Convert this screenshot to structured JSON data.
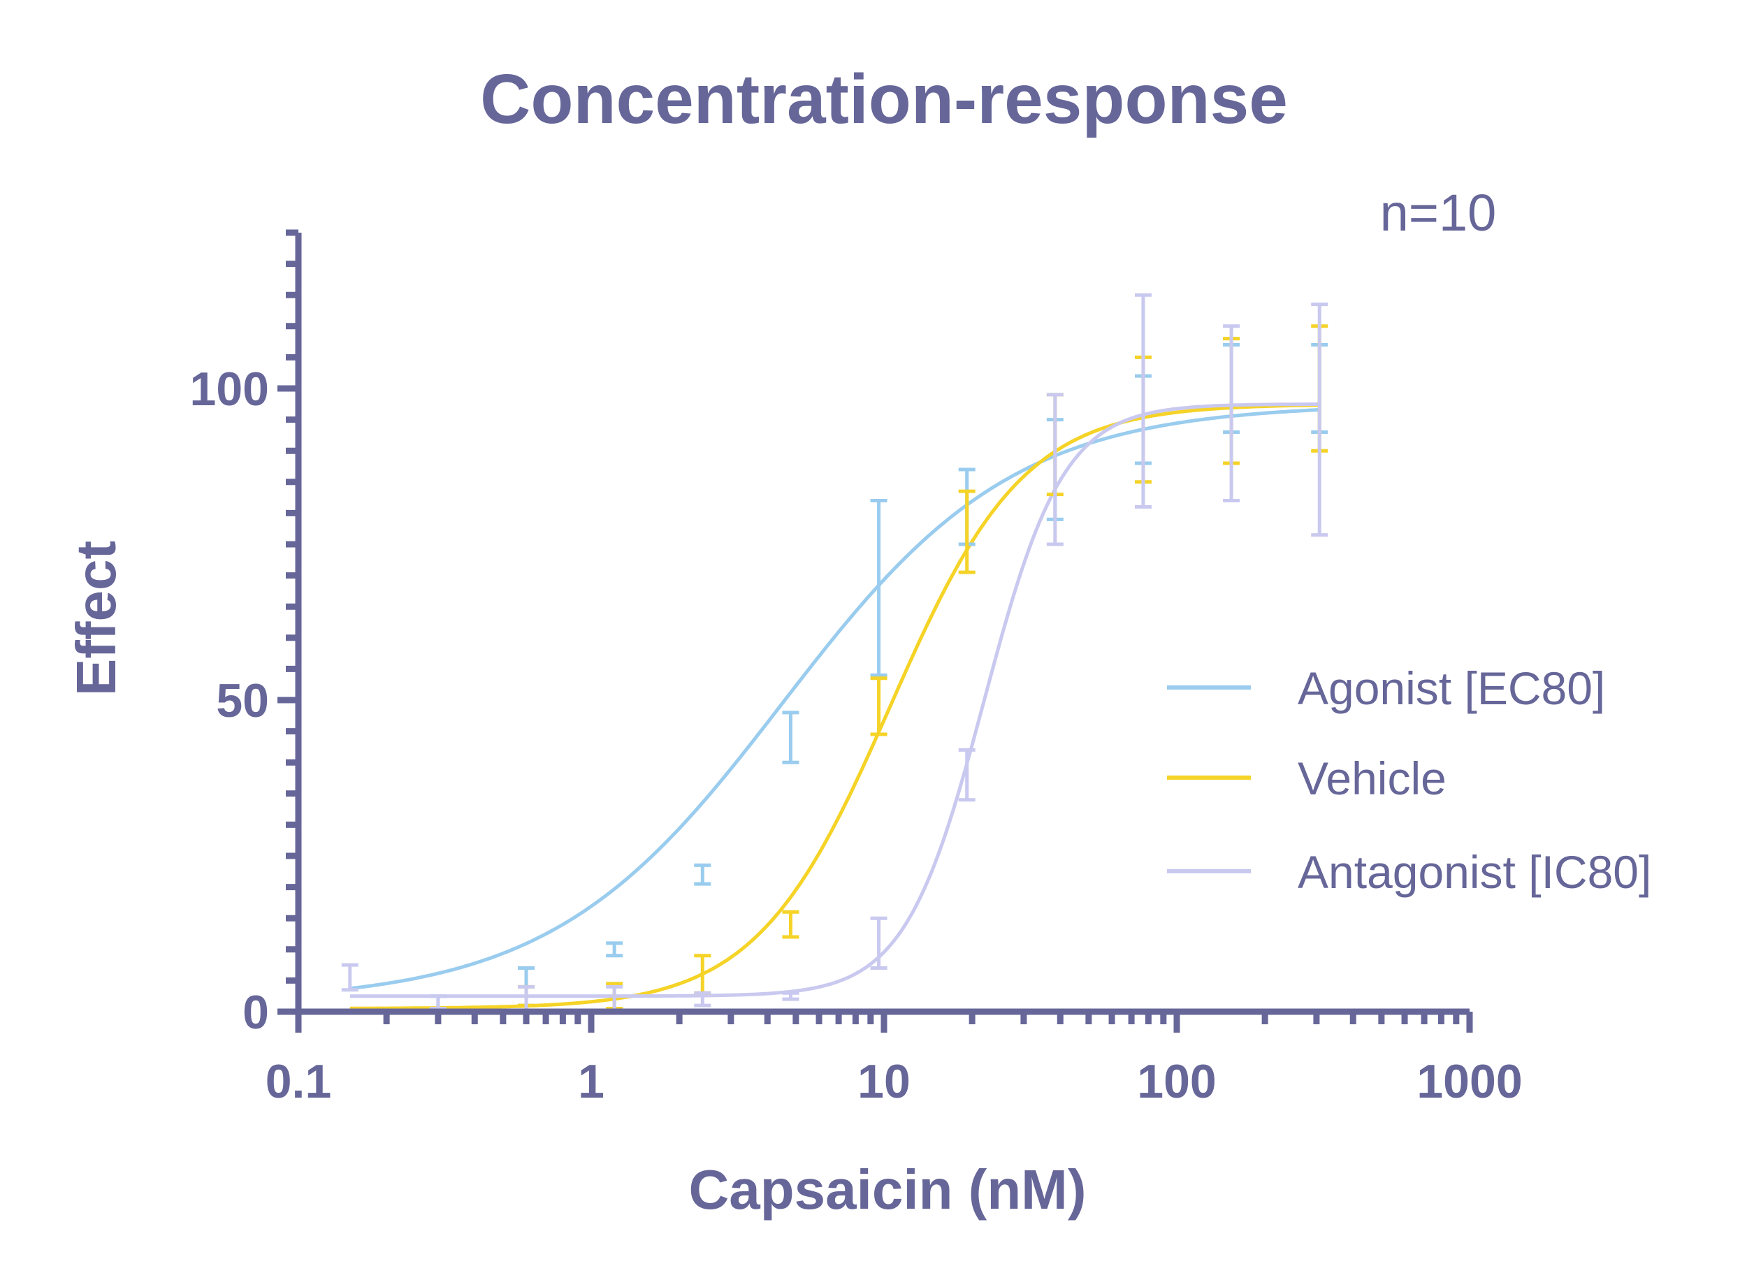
{
  "chart_data": {
    "type": "scatter",
    "title": "Concentration-response",
    "annotation": "n=10",
    "xlabel": "Capsaicin (nM)",
    "ylabel": "Effect",
    "xscale": "log",
    "xlim": [
      0.1,
      1000
    ],
    "ylim": [
      0,
      125
    ],
    "x_ticks": [
      0.1,
      1,
      10,
      100,
      1000
    ],
    "x_tick_labels": [
      "0.1",
      "1",
      "10",
      "100",
      "1000"
    ],
    "y_ticks": [
      0,
      50,
      100
    ],
    "y_tick_labels": [
      "0",
      "50",
      "100"
    ],
    "legend_position": "right",
    "series": [
      {
        "name": "Agonist [EC80]",
        "color": "#99ccee",
        "fit": {
          "bottom": 1.5,
          "top": 97.5,
          "ec50": 4.5,
          "hill": 1.1
        },
        "points": [
          {
            "x": 0.3,
            "y": 1.5,
            "err": 1
          },
          {
            "x": 0.6,
            "y": 4,
            "err": 3
          },
          {
            "x": 1.2,
            "y": 10,
            "err": 1
          },
          {
            "x": 2.4,
            "y": 22,
            "err": 1.5
          },
          {
            "x": 4.8,
            "y": 44,
            "err": 4
          },
          {
            "x": 9.6,
            "y": 68,
            "err": 14
          },
          {
            "x": 19.2,
            "y": 81,
            "err": 6
          },
          {
            "x": 38.4,
            "y": 87,
            "err": 8
          },
          {
            "x": 76.8,
            "y": 95,
            "err": 7
          },
          {
            "x": 153.6,
            "y": 100,
            "err": 7
          },
          {
            "x": 307.2,
            "y": 100,
            "err": 7
          }
        ]
      },
      {
        "name": "Vehicle",
        "color": "#f5d327",
        "fit": {
          "bottom": 0.5,
          "top": 97.5,
          "ec50": 10.5,
          "hill": 1.9
        },
        "points": [
          {
            "x": 0.6,
            "y": 2.5,
            "err": 1.5
          },
          {
            "x": 1.2,
            "y": 2.5,
            "err": 2
          },
          {
            "x": 2.4,
            "y": 6,
            "err": 3
          },
          {
            "x": 4.8,
            "y": 14,
            "err": 2
          },
          {
            "x": 9.6,
            "y": 49,
            "err": 4.5
          },
          {
            "x": 19.2,
            "y": 77,
            "err": 6.5
          },
          {
            "x": 38.4,
            "y": 91,
            "err": 8
          },
          {
            "x": 76.8,
            "y": 95,
            "err": 10
          },
          {
            "x": 153.6,
            "y": 98,
            "err": 10
          },
          {
            "x": 307.2,
            "y": 100,
            "err": 10
          }
        ]
      },
      {
        "name": "Antagonist [IC80]",
        "color": "#c9c9f0",
        "fit": {
          "bottom": 2.5,
          "top": 97.5,
          "ec50": 22,
          "hill": 3.2
        },
        "points": [
          {
            "x": 0.15,
            "y": 5.5,
            "err": 2
          },
          {
            "x": 0.3,
            "y": 1.5,
            "err": 1
          },
          {
            "x": 0.6,
            "y": 2,
            "err": 2
          },
          {
            "x": 1.2,
            "y": 2,
            "err": 2
          },
          {
            "x": 2.4,
            "y": 2,
            "err": 1
          },
          {
            "x": 4.8,
            "y": 2.5,
            "err": 0.5
          },
          {
            "x": 9.6,
            "y": 11,
            "err": 4
          },
          {
            "x": 19.2,
            "y": 38,
            "err": 4
          },
          {
            "x": 38.4,
            "y": 87,
            "err": 12
          },
          {
            "x": 76.8,
            "y": 98,
            "err": 17
          },
          {
            "x": 153.6,
            "y": 96,
            "err": 14
          },
          {
            "x": 307.2,
            "y": 95,
            "err": 18.5
          }
        ]
      }
    ]
  }
}
